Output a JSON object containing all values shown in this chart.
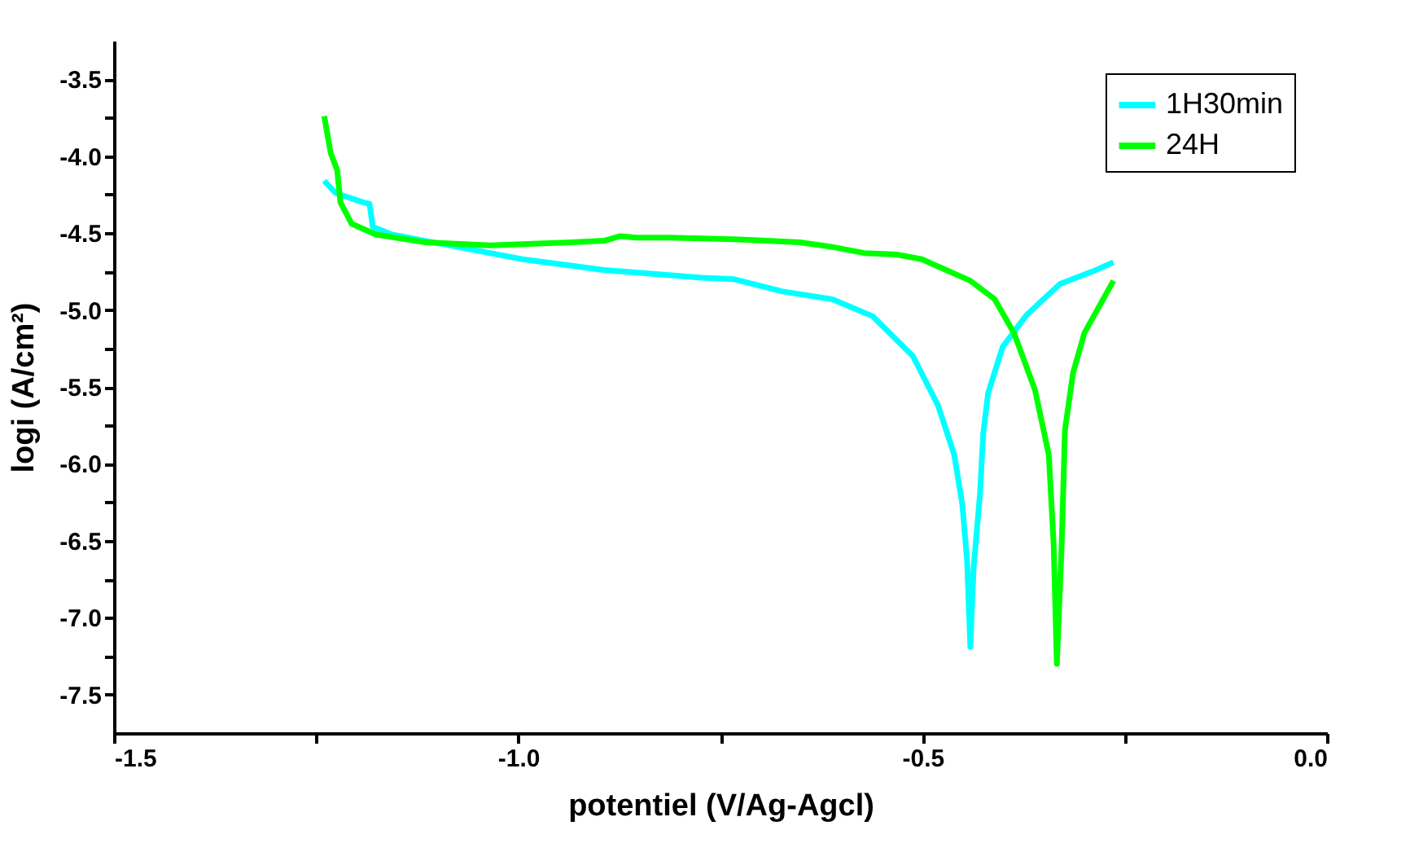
{
  "chart_data": {
    "type": "line",
    "xlabel": "potentiel (V/Ag-Agcl)",
    "ylabel": "logi (A/cm²)",
    "xlim": [
      -1.5,
      0.0
    ],
    "xticks": [
      -1.5,
      {
        "value": -1.25,
        "label": null
      },
      {
        "value": -1,
        "label": "-1.0"
      },
      {
        "value": -0.75,
        "label": null
      },
      -0.5,
      {
        "value": -0.25,
        "label": null
      },
      {
        "value": 0,
        "label": "0.0"
      }
    ],
    "ylim": [
      -7.75,
      -3.25
    ],
    "yticks": [
      -3.5,
      {
        "value": -3.75,
        "label": null
      },
      {
        "value": -4,
        "label": "-4.0"
      },
      {
        "value": -4.25,
        "label": null
      },
      -4.5,
      {
        "value": -4.75,
        "label": null
      },
      {
        "value": -5,
        "label": "-5.0"
      },
      {
        "value": -5.25,
        "label": null
      },
      -5.5,
      {
        "value": -5.75,
        "label": null
      },
      {
        "value": -6,
        "label": "-6.0"
      },
      {
        "value": -6.25,
        "label": null
      },
      -6.5,
      {
        "value": -6.75,
        "label": null
      },
      {
        "value": -7,
        "label": "-7.0"
      },
      {
        "value": -7.25,
        "label": null
      },
      -7.5
    ],
    "grid": false,
    "legend": "top right",
    "marker": "none",
    "line_style": "solid",
    "series": [
      {
        "name": "1H30min",
        "color": "#00ffff",
        "x": [
          -1.24,
          -1.226,
          -1.192,
          -1.184,
          -1.18,
          -1.156,
          -1.075,
          -0.995,
          -0.894,
          -0.773,
          -0.733,
          -0.673,
          -0.612,
          -0.562,
          -0.512,
          -0.481,
          -0.461,
          -0.451,
          -0.445,
          -0.441,
          -0.437,
          -0.429,
          -0.425,
          -0.419,
          -0.401,
          -0.371,
          -0.33,
          -0.29,
          -0.264
        ],
        "values": [
          -4.16,
          -4.24,
          -4.3,
          -4.31,
          -4.46,
          -4.51,
          -4.59,
          -4.67,
          -4.74,
          -4.79,
          -4.8,
          -4.88,
          -4.93,
          -5.04,
          -5.3,
          -5.62,
          -5.94,
          -6.26,
          -6.63,
          -7.19,
          -6.68,
          -6.19,
          -5.8,
          -5.54,
          -5.24,
          -5.03,
          -4.83,
          -4.75,
          -4.69
        ]
      },
      {
        "name": "24H",
        "color": "#00ff00",
        "x": [
          -1.24,
          -1.232,
          -1.224,
          -1.22,
          -1.206,
          -1.176,
          -1.115,
          -1.035,
          -0.934,
          -0.894,
          -0.874,
          -0.854,
          -0.813,
          -0.733,
          -0.693,
          -0.652,
          -0.612,
          -0.572,
          -0.532,
          -0.501,
          -0.471,
          -0.441,
          -0.411,
          -0.387,
          -0.361,
          -0.344,
          -0.338,
          -0.334,
          -0.328,
          -0.324,
          -0.314,
          -0.3,
          -0.264
        ],
        "values": [
          -3.74,
          -3.98,
          -4.09,
          -4.3,
          -4.44,
          -4.51,
          -4.56,
          -4.58,
          -4.56,
          -4.55,
          -4.52,
          -4.53,
          -4.53,
          -4.54,
          -4.55,
          -4.56,
          -4.59,
          -4.63,
          -4.64,
          -4.67,
          -4.74,
          -4.81,
          -4.93,
          -5.15,
          -5.52,
          -5.94,
          -6.52,
          -7.3,
          -6.52,
          -5.78,
          -5.41,
          -5.15,
          -4.81
        ]
      }
    ]
  }
}
